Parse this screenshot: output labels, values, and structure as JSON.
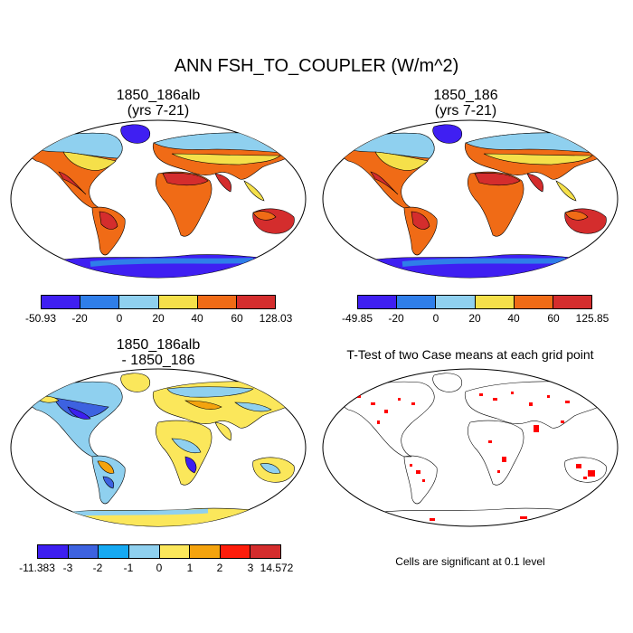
{
  "title": "ANN FSH_TO_COUPLER (W/m^2)",
  "panels": [
    {
      "line1": "1850_186alb",
      "line2": "(yrs 7-21)",
      "colorbar": {
        "colors": [
          "#3f1ff2",
          "#2f7ee9",
          "#8fd0ef",
          "#f5e04a",
          "#f06b16",
          "#d42d2d"
        ],
        "labels": [
          "-50.93",
          "-20",
          "0",
          "20",
          "40",
          "60",
          "128.03"
        ]
      }
    },
    {
      "line1": "1850_186",
      "line2": "(yrs 7-21)",
      "colorbar": {
        "colors": [
          "#3f1ff2",
          "#2f7ee9",
          "#8fd0ef",
          "#f5e04a",
          "#f06b16",
          "#d42d2d"
        ],
        "labels": [
          "-49.85",
          "-20",
          "0",
          "20",
          "40",
          "60",
          "125.85"
        ]
      }
    },
    {
      "line1": "1850_186alb",
      "line2": "- 1850_186",
      "colorbar": {
        "colors": [
          "#3d1ff0",
          "#3d62e0",
          "#16a9f2",
          "#8fd0ef",
          "#fbe75b",
          "#f4a30e",
          "#fd1d0b",
          "#d42d2d"
        ],
        "labels": [
          "-11.383",
          "-3",
          "-2",
          "-1",
          "0",
          "1",
          "2",
          "3",
          "14.572"
        ]
      }
    },
    {
      "line1": "T-Test of two Case means at each grid point",
      "line2": "",
      "note": "Cells are significant at 0.1 level"
    }
  ]
}
